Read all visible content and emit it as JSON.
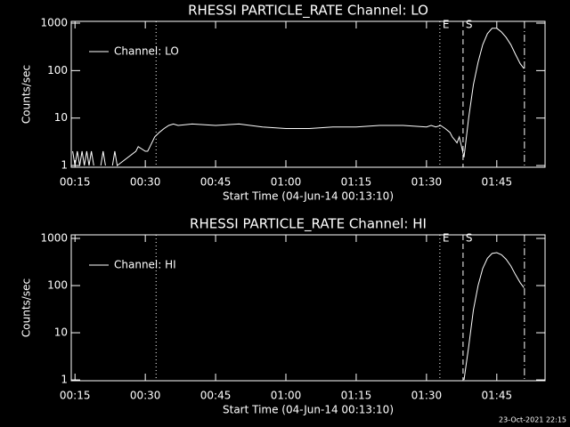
{
  "chart_data": [
    {
      "type": "line",
      "title": "RHESSI PARTICLE_RATE Channel: LO",
      "x_label": "Start Time (04-Jun-14 00:13:10)",
      "y_label": "Counts/sec",
      "log_y": true,
      "xlim": [
        14.2,
        115.3
      ],
      "ylim": [
        0.92,
        1090
      ],
      "xticks": [
        {
          "value": 15,
          "label": "00:15"
        },
        {
          "value": 30,
          "label": "00:30"
        },
        {
          "value": 45,
          "label": "00:45"
        },
        {
          "value": 60,
          "label": "01:00"
        },
        {
          "value": 75,
          "label": "01:15"
        },
        {
          "value": 90,
          "label": "01:30"
        },
        {
          "value": 105,
          "label": "01:45"
        }
      ],
      "yticks": [
        1,
        10,
        100,
        1000
      ],
      "markers": [
        {
          "x": 32.3,
          "style": "dotted"
        },
        {
          "x": 92.85,
          "style": "dotted",
          "label": "E"
        },
        {
          "x": 97.8,
          "style": "dashed",
          "label": "S"
        },
        {
          "x": 110.9,
          "style": "dashdot"
        }
      ],
      "x": [
        14.5,
        15,
        15.5,
        16,
        16.5,
        17,
        17.5,
        18,
        18.5,
        19,
        20,
        20.5,
        21,
        21.5,
        22,
        23,
        23.5,
        24,
        28,
        28.5,
        30,
        30.5,
        31,
        32,
        33,
        34,
        35,
        36,
        37,
        40,
        45,
        50,
        55,
        60,
        65,
        70,
        75,
        80,
        85,
        90,
        91,
        92,
        93,
        94,
        95,
        95.5,
        96,
        96.5,
        97,
        98,
        99,
        100,
        101,
        102,
        103,
        104,
        105,
        106,
        107,
        108,
        109,
        110,
        110.8
      ],
      "series": [
        {
          "name": "Channel: LO",
          "color": "#ffffff",
          "values": [
            2,
            1,
            2,
            1,
            2,
            1,
            2,
            1,
            2,
            1,
            null,
            1,
            2,
            1,
            null,
            1,
            2,
            1,
            2,
            2.5,
            2,
            2,
            2.5,
            4,
            5,
            6,
            7,
            7.5,
            7,
            7.5,
            7,
            7.5,
            6.5,
            6,
            6,
            6.5,
            6.5,
            7,
            7,
            6.5,
            7,
            6.5,
            7,
            6,
            5,
            4,
            3.5,
            3,
            4,
            1.5,
            10,
            50,
            150,
            350,
            600,
            780,
            780,
            650,
            500,
            350,
            220,
            140,
            110
          ]
        }
      ]
    },
    {
      "type": "line",
      "title": "RHESSI PARTICLE_RATE Channel: HI",
      "x_label": "Start Time (04-Jun-14 00:13:10)",
      "y_label": "Counts/sec",
      "log_y": true,
      "xlim": [
        14.2,
        115.3
      ],
      "ylim": [
        0.96,
        1190
      ],
      "xticks": [
        {
          "value": 15,
          "label": "00:15"
        },
        {
          "value": 30,
          "label": "00:30"
        },
        {
          "value": 45,
          "label": "00:45"
        },
        {
          "value": 60,
          "label": "01:00"
        },
        {
          "value": 75,
          "label": "01:15"
        },
        {
          "value": 90,
          "label": "01:30"
        },
        {
          "value": 105,
          "label": "01:45"
        }
      ],
      "yticks": [
        1,
        10,
        100,
        1000
      ],
      "markers": [
        {
          "x": 32.3,
          "style": "dotted"
        },
        {
          "x": 92.85,
          "style": "dotted",
          "label": "E"
        },
        {
          "x": 97.8,
          "style": "dashed",
          "label": "S"
        },
        {
          "x": 110.9,
          "style": "dashdot"
        }
      ],
      "x": [
        98,
        99,
        100,
        101,
        102,
        103,
        104,
        105,
        106,
        107,
        108,
        109,
        110,
        110.8
      ],
      "series": [
        {
          "name": "Channel: HI",
          "color": "#ffffff",
          "values": [
            1,
            5,
            30,
            100,
            230,
            380,
            480,
            500,
            450,
            360,
            260,
            170,
            115,
            90
          ]
        }
      ]
    }
  ],
  "footer": "23-Oct-2021 22:15"
}
